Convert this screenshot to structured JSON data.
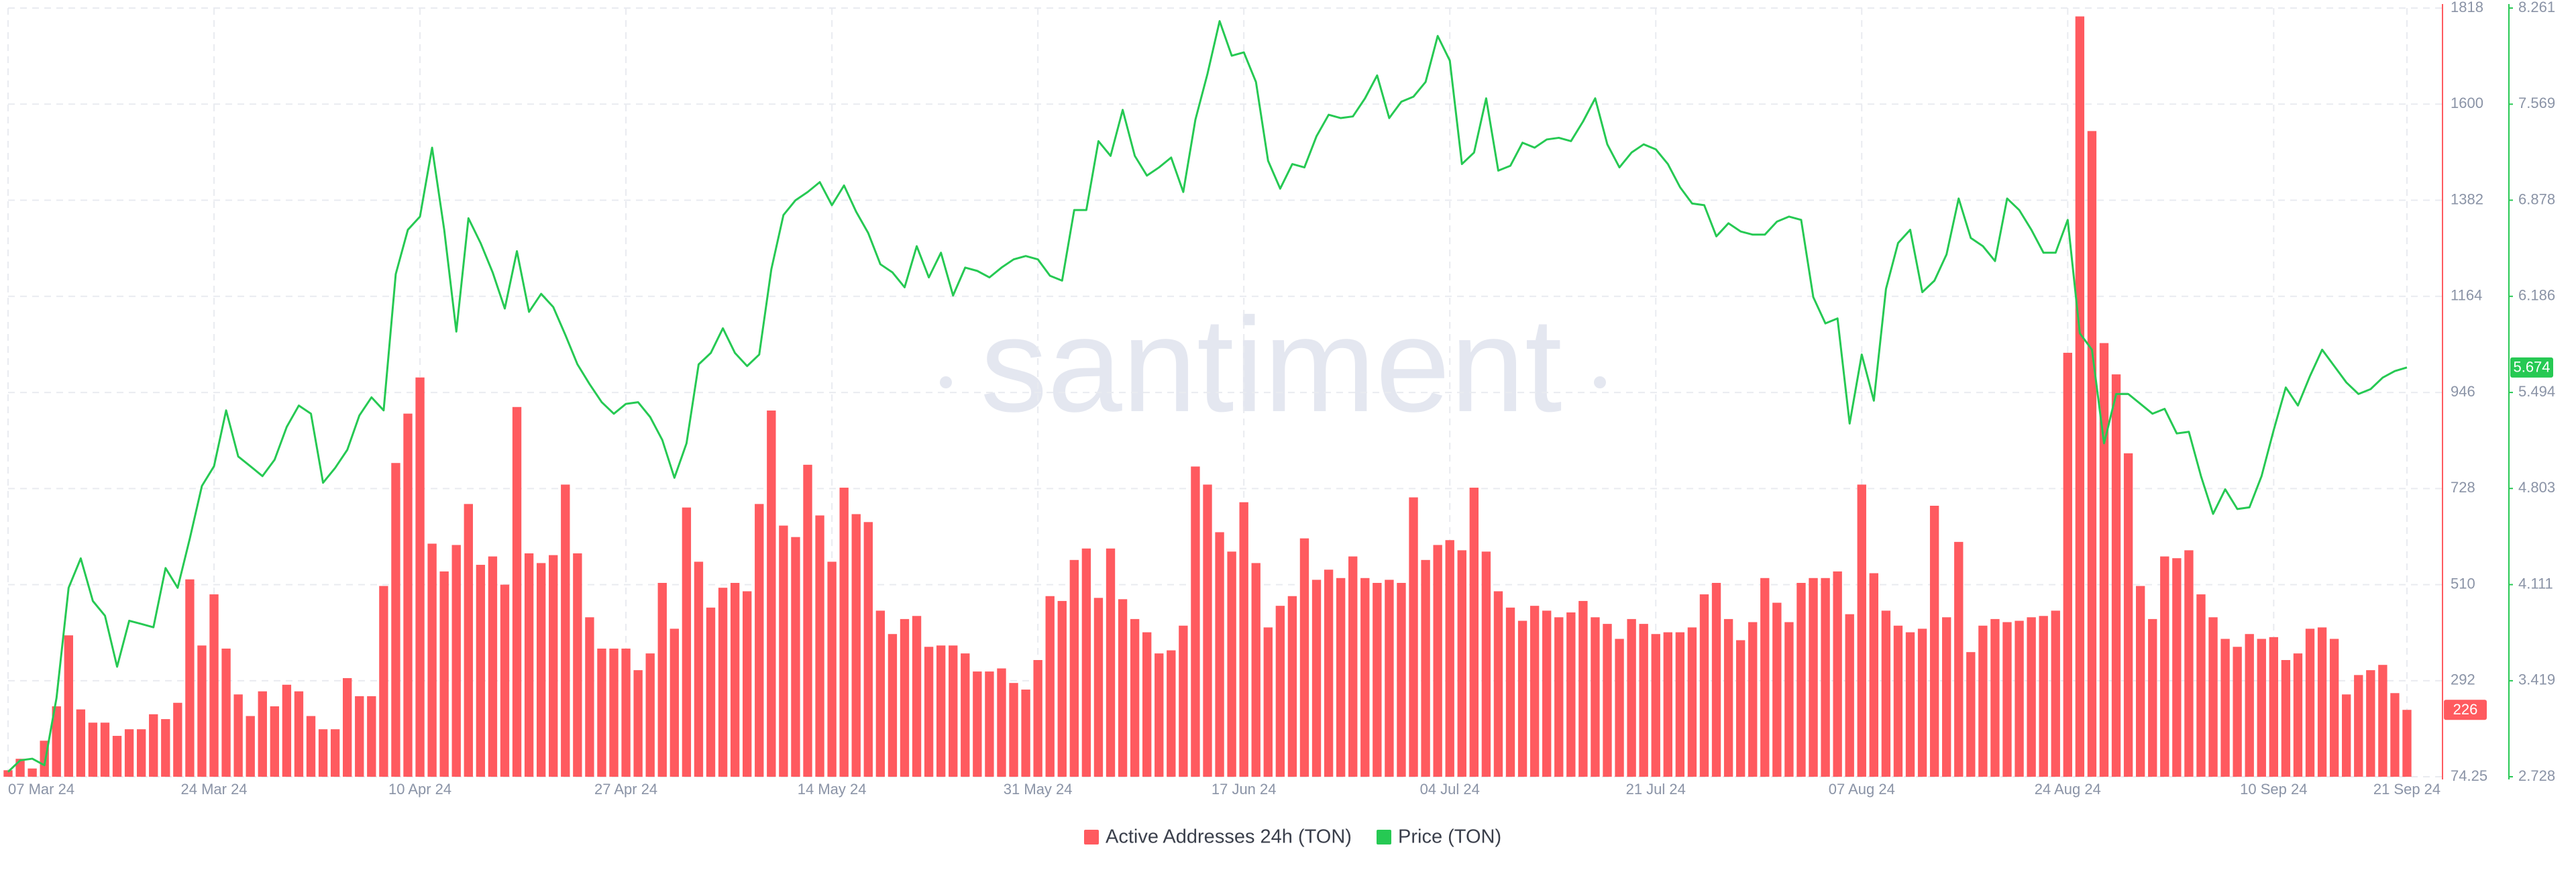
{
  "chart_data": {
    "type": "combo",
    "watermark": "santiment",
    "grid": true,
    "legend": "bottom",
    "categories": [
      "07 Mar 24",
      null,
      null,
      null,
      null,
      null,
      null,
      null,
      null,
      null,
      null,
      null,
      null,
      null,
      null,
      null,
      null,
      "24 Mar 24",
      null,
      null,
      null,
      null,
      null,
      null,
      null,
      null,
      null,
      null,
      null,
      null,
      null,
      null,
      null,
      null,
      "10 Apr 24",
      null,
      null,
      null,
      null,
      null,
      null,
      null,
      null,
      null,
      null,
      null,
      null,
      null,
      null,
      null,
      null,
      "27 Apr 24",
      null,
      null,
      null,
      null,
      null,
      null,
      null,
      null,
      null,
      null,
      null,
      null,
      null,
      null,
      null,
      null,
      "14 May 24",
      null,
      null,
      null,
      null,
      null,
      null,
      null,
      null,
      null,
      null,
      null,
      null,
      null,
      null,
      null,
      null,
      "31 May 24",
      null,
      null,
      null,
      null,
      null,
      null,
      null,
      null,
      null,
      null,
      null,
      null,
      null,
      null,
      null,
      null,
      "17 Jun 24",
      null,
      null,
      null,
      null,
      null,
      null,
      null,
      null,
      null,
      null,
      null,
      null,
      null,
      null,
      null,
      null,
      "04 Jul 24",
      null,
      null,
      null,
      null,
      null,
      null,
      null,
      null,
      null,
      null,
      null,
      null,
      null,
      null,
      null,
      null,
      "21 Jul 24",
      null,
      null,
      null,
      null,
      null,
      null,
      null,
      null,
      null,
      null,
      null,
      null,
      null,
      null,
      null,
      null,
      "07 Aug 24",
      null,
      null,
      null,
      null,
      null,
      null,
      null,
      null,
      null,
      null,
      null,
      null,
      null,
      null,
      null,
      null,
      "24 Aug 24",
      null,
      null,
      null,
      null,
      null,
      null,
      null,
      null,
      null,
      null,
      null,
      null,
      null,
      null,
      null,
      null,
      "10 Sep 24",
      null,
      null,
      null,
      null,
      null,
      null,
      null,
      null,
      null,
      null,
      "21 Sep 24"
    ],
    "ylim": [
      74.25,
      1818
    ],
    "yticks": [
      74.25,
      292,
      510,
      728,
      946,
      1164,
      1382,
      1600,
      1818
    ],
    "y2lim": [
      2.728,
      8.261
    ],
    "y2ticks": [
      2.728,
      3.419,
      4.111,
      4.803,
      5.494,
      6.186,
      6.878,
      7.569,
      8.261
    ],
    "series": [
      {
        "name": "Active Addresses 24h (TON)",
        "color": "#ff5a5f",
        "type": "bar",
        "axis": "y",
        "values": [
          89,
          115,
          93,
          156,
          234,
          395,
          227,
          197,
          197,
          167,
          182,
          182,
          216,
          205,
          242,
          522,
          372,
          488,
          365,
          261,
          212,
          268,
          234,
          283,
          268,
          212,
          182,
          182,
          298,
          257,
          257,
          507,
          786,
          898,
          980,
          603,
          540,
          600,
          693,
          555,
          574,
          510,
          913,
          581,
          559,
          577,
          737,
          581,
          436,
          365,
          365,
          365,
          316,
          354,
          514,
          410,
          685,
          562,
          458,
          503,
          514,
          495,
          693,
          905,
          644,
          618,
          782,
          667,
          562,
          730,
          670,
          652,
          451,
          398,
          432,
          439,
          369,
          372,
          372,
          354,
          313,
          313,
          320,
          287,
          272,
          339,
          484,
          473,
          566,
          592,
          480,
          592,
          477,
          432,
          402,
          354,
          361,
          417,
          778,
          737,
          629,
          585,
          697,
          559,
          413,
          462,
          484,
          615,
          521,
          544,
          525,
          574,
          525,
          514,
          521,
          514,
          708,
          566,
          600,
          611,
          588,
          730,
          585,
          495,
          458,
          428,
          462,
          451,
          436,
          447,
          473,
          436,
          421,
          387,
          432,
          421,
          398,
          402,
          402,
          413,
          488,
          514,
          432,
          384,
          425,
          525,
          469,
          425,
          514,
          525,
          525,
          540,
          443,
          737,
          536,
          451,
          417,
          402,
          410,
          689,
          436,
          607,
          357,
          417,
          432,
          425,
          428,
          436,
          439,
          451,
          1036,
          1799,
          1539,
          1058,
          987,
          808,
          507,
          432,
          574,
          570,
          588,
          488,
          436,
          387,
          369,
          398,
          387,
          391,
          339,
          354,
          410,
          413,
          387,
          261,
          305,
          316,
          328,
          264,
          226
        ]
      },
      {
        "name": "Price (TON)",
        "color": "#26c953",
        "type": "line",
        "axis": "y2",
        "values": [
          2.763,
          2.846,
          2.858,
          2.811,
          3.295,
          4.088,
          4.3,
          3.993,
          3.887,
          3.52,
          3.851,
          3.828,
          3.804,
          4.23,
          4.088,
          4.442,
          4.821,
          4.963,
          5.365,
          5.033,
          4.963,
          4.892,
          5.01,
          5.246,
          5.4,
          5.341,
          4.844,
          4.951,
          5.081,
          5.329,
          5.459,
          5.365,
          6.346,
          6.665,
          6.76,
          7.256,
          6.665,
          5.932,
          6.748,
          6.57,
          6.358,
          6.098,
          6.511,
          6.074,
          6.204,
          6.109,
          5.908,
          5.696,
          5.554,
          5.424,
          5.341,
          5.412,
          5.424,
          5.317,
          5.152,
          4.88,
          5.128,
          5.696,
          5.778,
          5.956,
          5.778,
          5.684,
          5.767,
          6.381,
          6.771,
          6.878,
          6.937,
          7.008,
          6.842,
          6.984,
          6.795,
          6.641,
          6.417,
          6.358,
          6.251,
          6.547,
          6.322,
          6.5,
          6.192,
          6.393,
          6.369,
          6.322,
          6.393,
          6.452,
          6.476,
          6.452,
          6.334,
          6.299,
          6.807,
          6.807,
          7.303,
          7.197,
          7.528,
          7.197,
          7.055,
          7.114,
          7.185,
          6.937,
          7.457,
          7.788,
          8.167,
          7.918,
          7.942,
          7.729,
          7.162,
          6.961,
          7.138,
          7.114,
          7.339,
          7.493,
          7.469,
          7.481,
          7.611,
          7.776,
          7.469,
          7.587,
          7.623,
          7.729,
          8.06,
          7.883,
          7.138,
          7.221,
          7.611,
          7.091,
          7.126,
          7.292,
          7.256,
          7.315,
          7.327,
          7.303,
          7.445,
          7.611,
          7.28,
          7.114,
          7.221,
          7.28,
          7.244,
          7.138,
          6.972,
          6.854,
          6.842,
          6.618,
          6.712,
          6.653,
          6.63,
          6.63,
          6.724,
          6.76,
          6.736,
          6.18,
          5.991,
          6.027,
          5.27,
          5.767,
          5.435,
          6.239,
          6.57,
          6.665,
          6.216,
          6.299,
          6.488,
          6.89,
          6.606,
          6.547,
          6.44,
          6.89,
          6.807,
          6.665,
          6.5,
          6.5,
          6.736,
          5.92,
          5.802,
          5.128,
          5.483,
          5.483,
          5.412,
          5.341,
          5.376,
          5.199,
          5.211,
          4.892,
          4.62,
          4.797,
          4.655,
          4.667,
          4.892,
          5.223,
          5.53,
          5.4,
          5.613,
          5.802,
          5.684,
          5.566,
          5.483,
          5.518,
          5.601,
          5.648,
          5.674
        ]
      }
    ]
  }
}
